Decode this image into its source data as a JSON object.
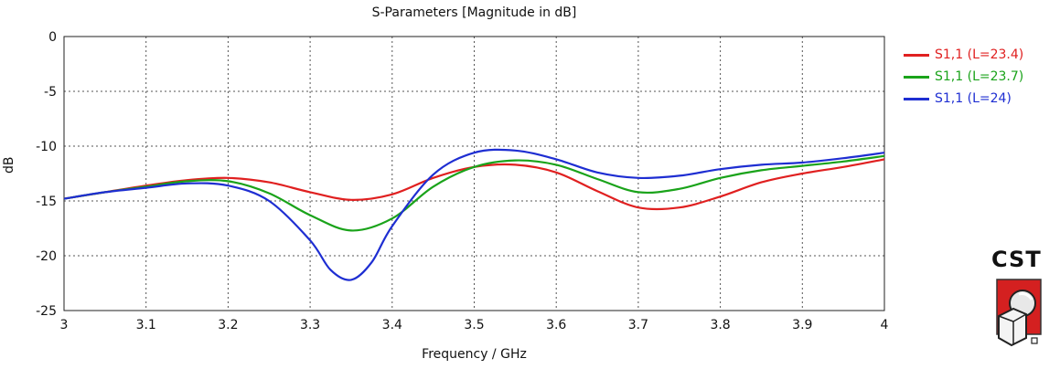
{
  "chart_data": {
    "type": "line",
    "title": "S-Parameters [Magnitude in dB]",
    "xlabel": "Frequency / GHz",
    "ylabel": "dB",
    "xlim": [
      3,
      4
    ],
    "ylim": [
      -25,
      0
    ],
    "x_ticks": [
      "3",
      "3.1",
      "3.2",
      "3.3",
      "3.4",
      "3.5",
      "3.6",
      "3.7",
      "3.8",
      "3.9",
      "4"
    ],
    "y_ticks": [
      "0",
      "-5",
      "-10",
      "-15",
      "-20",
      "-25"
    ],
    "grid": true,
    "legend_position": "right",
    "series": [
      {
        "name": "S1,1 (L=23.4)",
        "color": "#e02020",
        "points": [
          [
            3.0,
            -14.8
          ],
          [
            3.05,
            -14.2
          ],
          [
            3.1,
            -13.6
          ],
          [
            3.15,
            -13.1
          ],
          [
            3.2,
            -12.9
          ],
          [
            3.25,
            -13.3
          ],
          [
            3.3,
            -14.2
          ],
          [
            3.35,
            -14.9
          ],
          [
            3.4,
            -14.4
          ],
          [
            3.45,
            -12.9
          ],
          [
            3.5,
            -11.9
          ],
          [
            3.55,
            -11.7
          ],
          [
            3.6,
            -12.4
          ],
          [
            3.65,
            -14.1
          ],
          [
            3.7,
            -15.6
          ],
          [
            3.75,
            -15.6
          ],
          [
            3.8,
            -14.6
          ],
          [
            3.85,
            -13.3
          ],
          [
            3.9,
            -12.5
          ],
          [
            3.95,
            -11.9
          ],
          [
            4.0,
            -11.2
          ]
        ]
      },
      {
        "name": "S1,1 (L=23.7)",
        "color": "#1aa31a",
        "points": [
          [
            3.0,
            -14.8
          ],
          [
            3.05,
            -14.2
          ],
          [
            3.1,
            -13.7
          ],
          [
            3.15,
            -13.2
          ],
          [
            3.2,
            -13.2
          ],
          [
            3.25,
            -14.3
          ],
          [
            3.3,
            -16.3
          ],
          [
            3.35,
            -17.7
          ],
          [
            3.4,
            -16.6
          ],
          [
            3.45,
            -13.7
          ],
          [
            3.5,
            -11.9
          ],
          [
            3.55,
            -11.3
          ],
          [
            3.6,
            -11.7
          ],
          [
            3.65,
            -13.0
          ],
          [
            3.7,
            -14.2
          ],
          [
            3.75,
            -13.9
          ],
          [
            3.8,
            -12.9
          ],
          [
            3.85,
            -12.2
          ],
          [
            3.9,
            -11.8
          ],
          [
            3.95,
            -11.4
          ],
          [
            4.0,
            -10.9
          ]
        ]
      },
      {
        "name": "S1,1 (L=24)",
        "color": "#1e2ed2",
        "points": [
          [
            3.0,
            -14.8
          ],
          [
            3.05,
            -14.2
          ],
          [
            3.1,
            -13.8
          ],
          [
            3.15,
            -13.4
          ],
          [
            3.2,
            -13.6
          ],
          [
            3.25,
            -15.0
          ],
          [
            3.3,
            -18.6
          ],
          [
            3.325,
            -21.3
          ],
          [
            3.35,
            -22.2
          ],
          [
            3.375,
            -20.6
          ],
          [
            3.4,
            -17.3
          ],
          [
            3.45,
            -12.6
          ],
          [
            3.5,
            -10.6
          ],
          [
            3.55,
            -10.4
          ],
          [
            3.6,
            -11.2
          ],
          [
            3.65,
            -12.4
          ],
          [
            3.7,
            -12.9
          ],
          [
            3.75,
            -12.7
          ],
          [
            3.8,
            -12.1
          ],
          [
            3.85,
            -11.7
          ],
          [
            3.9,
            -11.5
          ],
          [
            3.95,
            -11.1
          ],
          [
            4.0,
            -10.6
          ]
        ]
      }
    ]
  },
  "logo": {
    "text": "CST"
  }
}
